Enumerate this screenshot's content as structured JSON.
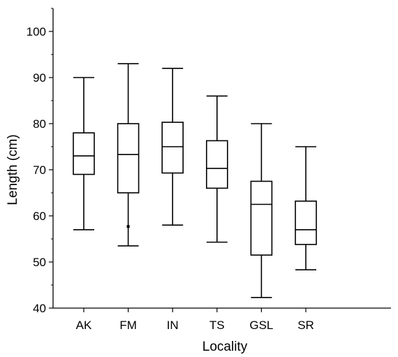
{
  "chart_data": {
    "type": "box",
    "title": "",
    "xlabel": "Locality",
    "ylabel": "Length (cm)",
    "ylim": [
      40,
      105
    ],
    "yticks": [
      40,
      50,
      60,
      70,
      80,
      90,
      100
    ],
    "grid": false,
    "categories": [
      "AK",
      "FM",
      "IN",
      "TS",
      "GSL",
      "SR"
    ],
    "boxes": [
      {
        "category": "AK",
        "whisker_low": 57.0,
        "q1": 69.0,
        "median": 73.0,
        "q3": 78.0,
        "whisker_high": 90.0,
        "outliers": []
      },
      {
        "category": "FM",
        "whisker_low": 53.5,
        "q1": 65.0,
        "median": 73.3,
        "q3": 80.0,
        "whisker_high": 93.0,
        "outliers": [
          57.7
        ]
      },
      {
        "category": "IN",
        "whisker_low": 58.0,
        "q1": 69.3,
        "median": 75.0,
        "q3": 80.3,
        "whisker_high": 92.0,
        "outliers": []
      },
      {
        "category": "TS",
        "whisker_low": 54.3,
        "q1": 66.0,
        "median": 70.3,
        "q3": 76.3,
        "whisker_high": 86.0,
        "outliers": []
      },
      {
        "category": "GSL",
        "whisker_low": 42.3,
        "q1": 51.5,
        "median": 62.5,
        "q3": 67.5,
        "whisker_high": 80.0,
        "outliers": []
      },
      {
        "category": "SR",
        "whisker_low": 48.3,
        "q1": 53.8,
        "median": 57.0,
        "q3": 63.2,
        "whisker_high": 75.0,
        "outliers": []
      }
    ]
  }
}
